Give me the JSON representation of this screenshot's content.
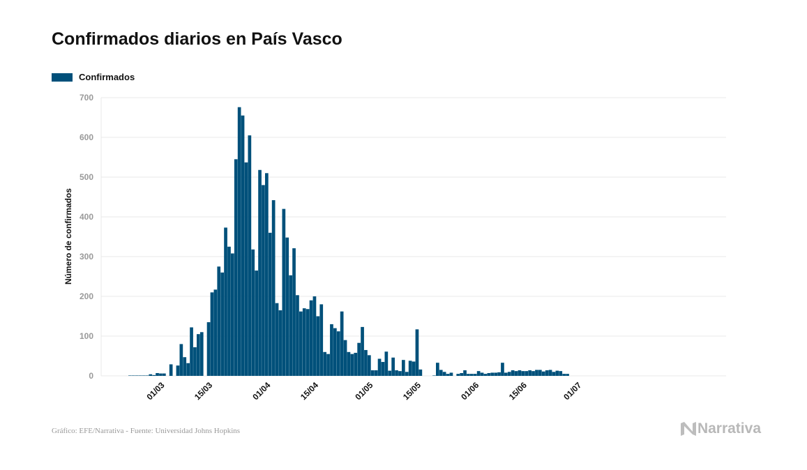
{
  "header": {
    "title": "Confirmados diarios en País Vasco"
  },
  "footer": {
    "source": "Gráfico: EFE/Narrativa - Fuente: Universidad Johns Hopkins",
    "brand": "Narrativa"
  },
  "colors": {
    "bar": "#00507a",
    "grid": "#e8e8e8",
    "logo": "#bdbdbd"
  },
  "icons": {
    "brand_logo": "narrativa-logo-icon"
  },
  "chart_data": {
    "type": "bar",
    "title": "Confirmados diarios en País Vasco",
    "xlabel": "",
    "ylabel": "Número de confirmados",
    "ylim": [
      0,
      700
    ],
    "yticks": [
      0,
      100,
      200,
      300,
      400,
      500,
      600,
      700
    ],
    "legend": {
      "position": "top-left"
    },
    "grid": true,
    "x_start_date": "2020-02-21",
    "xticks": [
      {
        "label": "01/03",
        "date": "2020-03-01"
      },
      {
        "label": "15/03",
        "date": "2020-03-15"
      },
      {
        "label": "01/04",
        "date": "2020-04-01"
      },
      {
        "label": "15/04",
        "date": "2020-04-15"
      },
      {
        "label": "01/05",
        "date": "2020-05-01"
      },
      {
        "label": "15/05",
        "date": "2020-05-15"
      },
      {
        "label": "01/06",
        "date": "2020-06-01"
      },
      {
        "label": "15/06",
        "date": "2020-06-15"
      },
      {
        "label": "01/07",
        "date": "2020-07-01"
      }
    ],
    "series": [
      {
        "name": "Confirmados",
        "values": [
          1,
          1,
          1,
          1,
          1,
          1,
          4,
          2,
          7,
          6,
          6,
          0,
          29,
          0,
          26,
          80,
          47,
          32,
          122,
          72,
          105,
          110,
          0,
          135,
          210,
          217,
          275,
          260,
          373,
          325,
          308,
          545,
          676,
          655,
          537,
          605,
          318,
          265,
          518,
          480,
          510,
          360,
          442,
          183,
          165,
          420,
          348,
          253,
          321,
          203,
          162,
          170,
          168,
          190,
          200,
          150,
          180,
          60,
          55,
          130,
          120,
          112,
          162,
          90,
          60,
          55,
          58,
          83,
          123,
          65,
          52,
          14,
          14,
          43,
          35,
          61,
          13,
          46,
          14,
          12,
          40,
          10,
          38,
          36,
          117,
          16,
          0,
          0,
          0,
          1,
          33,
          15,
          10,
          5,
          8,
          0,
          5,
          7,
          14,
          5,
          5,
          5,
          12,
          8,
          5,
          7,
          8,
          8,
          9,
          33,
          8,
          10,
          14,
          12,
          14,
          12,
          12,
          14,
          12,
          15,
          15,
          11,
          14,
          15,
          10,
          13,
          12,
          5,
          5,
          0
        ]
      }
    ]
  }
}
